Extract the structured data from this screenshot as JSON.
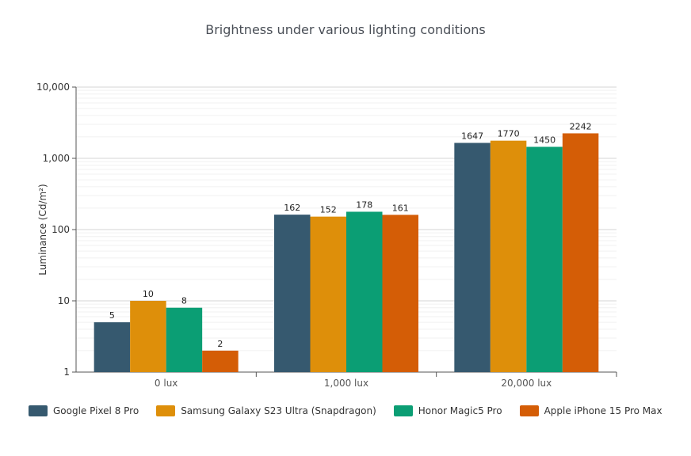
{
  "chart_data": {
    "type": "bar",
    "title": "Brightness under various lighting conditions",
    "ylabel": "Luminance (Cd/m²)",
    "xlabel": "",
    "yscale": "log",
    "ylim": [
      1,
      10000
    ],
    "yticks": [
      "1",
      "10",
      "100",
      "1,000",
      "10,000"
    ],
    "categories": [
      "0 lux",
      "1,000 lux",
      "20,000 lux"
    ],
    "grid": true,
    "legend_position": "bottom",
    "series": [
      {
        "name": "Google Pixel 8 Pro",
        "color": "#36596f",
        "values": [
          5,
          162,
          1647
        ]
      },
      {
        "name": "Samsung Galaxy S23 Ultra (Snapdragon)",
        "color": "#de8f0a",
        "values": [
          10,
          152,
          1770
        ]
      },
      {
        "name": "Honor Magic5 Pro",
        "color": "#0b9e74",
        "values": [
          8,
          178,
          1450
        ]
      },
      {
        "name": "Apple iPhone 15 Pro Max",
        "color": "#d45d06",
        "values": [
          2,
          161,
          2242
        ]
      }
    ]
  }
}
